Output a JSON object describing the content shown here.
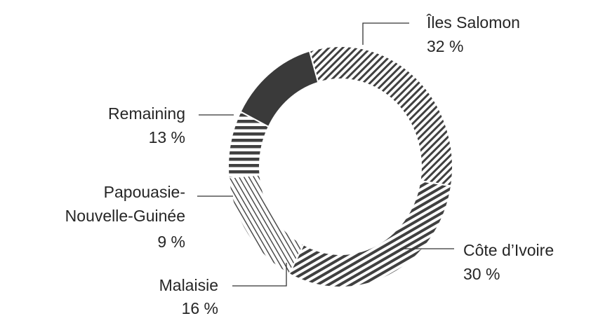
{
  "chart_data": {
    "type": "pie",
    "variant": "donut",
    "colors": {
      "stroke": "#333333",
      "hatch": "#404040",
      "background": "#ffffff"
    },
    "slices": [
      {
        "label": "Îles Salomon",
        "pct_text": "32 %",
        "value": 32,
        "pattern": "diag-right-dense"
      },
      {
        "label": "Côte d’Ivoire",
        "pct_text": "30 %",
        "value": 30,
        "pattern": "diag-shallow"
      },
      {
        "label": "Malaisie",
        "pct_text": "16 %",
        "value": 16,
        "pattern": "diag-left-fine"
      },
      {
        "label": "Papouasie-\nNouvelle-Guinée",
        "pct_text": "9 %",
        "value": 9,
        "pattern": "horizontal"
      },
      {
        "label": "Remaining",
        "pct_text": "13 %",
        "value": 13,
        "pattern": "solid"
      }
    ]
  }
}
